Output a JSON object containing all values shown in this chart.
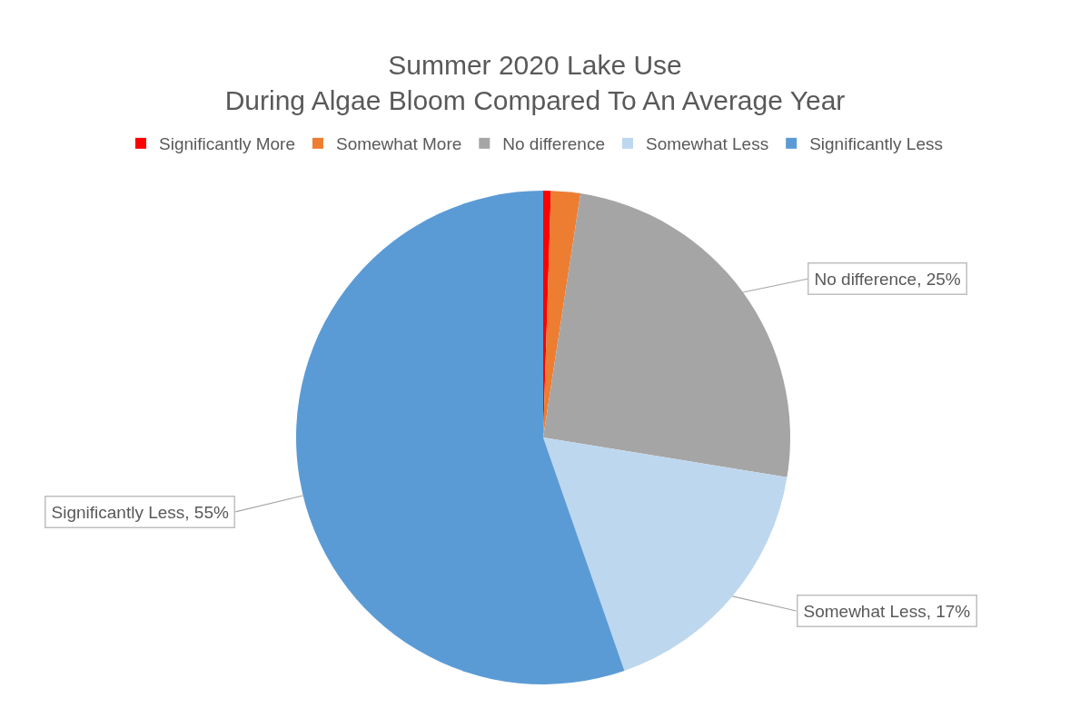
{
  "chart_data": {
    "type": "pie",
    "title": "Summer 2020 Lake Use\nDuring Algae Bloom Compared To An Average Year",
    "categories": [
      "Significantly More",
      "Somewhat More",
      "No difference",
      "Somewhat Less",
      "Significantly Less"
    ],
    "values": [
      0.5,
      1.9,
      25,
      17,
      55
    ],
    "colors": [
      "#ff0000",
      "#ed7d31",
      "#a5a5a5",
      "#bdd7ee",
      "#5b9bd5"
    ],
    "value_labels": [
      null,
      null,
      "No difference, 25%",
      "Somewhat Less, 17%",
      "Significantly Less, 55%"
    ],
    "legend": "top"
  }
}
